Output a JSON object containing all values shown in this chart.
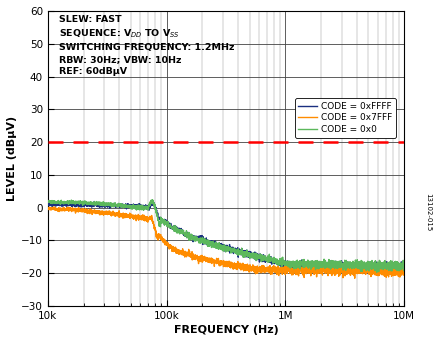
{
  "title": "",
  "xlabel": "FREQUENCY (Hz)",
  "ylabel": "LEVEL (dBµV)",
  "xlim": [
    10000,
    10000000
  ],
  "ylim": [
    -30,
    60
  ],
  "yticks": [
    -30,
    -20,
    -10,
    0,
    10,
    20,
    30,
    40,
    50,
    60
  ],
  "annotation_lines": [
    "SLEW: FAST",
    "SEQUENCE: V$_{DD}$ TO V$_{SS}$",
    "SWITCHING FREQUENCY: 1.2MHz",
    "RBW: 30Hz; VBW: 10Hz",
    "REF: 60dBµV"
  ],
  "ref_line_y": 20,
  "legend": [
    "CODE = 0xFFFF",
    "CODE = 0x7FFF",
    "CODE = 0x0"
  ],
  "line_colors": [
    "#1a2f80",
    "#ff8c00",
    "#5cb85c"
  ],
  "watermark": "13102-015",
  "background_color": "#ffffff"
}
